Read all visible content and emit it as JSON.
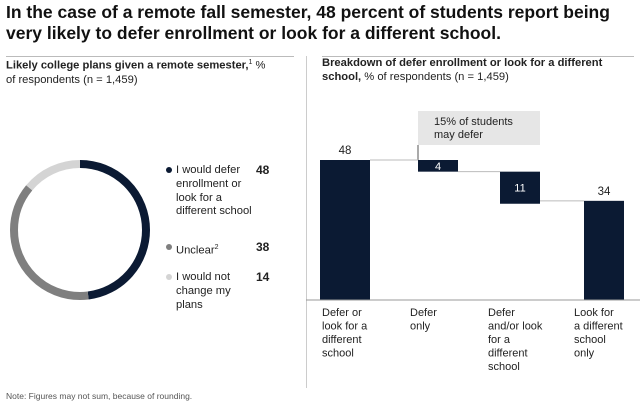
{
  "title": "In the case of a remote fall semester, 48 percent of students report being very likely to defer enrollment or look for a different school.",
  "left_panel": {
    "heading_bold": "Likely college plans given a remote semester,",
    "heading_sup": "1",
    "heading_rest": " % of respondents (n = 1,459)"
  },
  "right_panel": {
    "heading_bold": "Breakdown of defer enrollment or look for a different school,",
    "heading_rest": " % of respondents (n = 1,459)",
    "callout": "15% of students may defer"
  },
  "note": "Note: Figures may not sum, because of rounding.",
  "colors": {
    "dark": "#0b1a33",
    "gray": "#7f7f7f",
    "light": "#d4d4d4",
    "callout_bg": "#e6e6e6"
  },
  "chart_data": [
    {
      "type": "pie",
      "subtype": "donut",
      "slices": [
        {
          "label": "I would defer enrollment or look for a different school",
          "value": 48,
          "color": "#0b1a33"
        },
        {
          "label": "Unclear",
          "sup": "2",
          "value": 38,
          "color": "#7f7f7f"
        },
        {
          "label": "I would not change my plans",
          "value": 14,
          "color": "#d4d4d4"
        }
      ]
    },
    {
      "type": "bar",
      "subtype": "waterfall",
      "categories": [
        "Defer or look for a different school",
        "Defer only",
        "Defer and/or look for a different school",
        "Look for a different school only"
      ],
      "values": [
        48,
        4,
        11,
        34
      ],
      "ylim": [
        0,
        48
      ]
    }
  ]
}
